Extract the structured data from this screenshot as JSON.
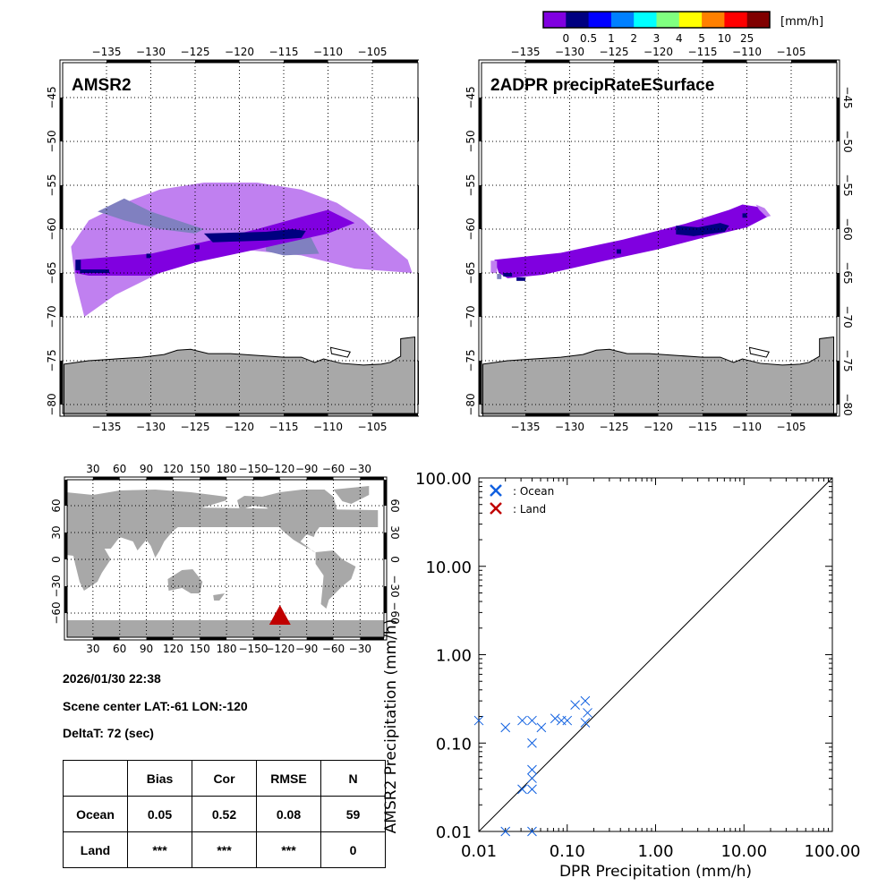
{
  "colorbar": {
    "unit_label": "[mm/h]",
    "colors": [
      "#8000e0",
      "#000080",
      "#0000ff",
      "#0080ff",
      "#00ffff",
      "#80ff80",
      "#ffff00",
      "#ff8000",
      "#ff0000",
      "#800000"
    ],
    "tick_labels": [
      "0",
      "0.5",
      "1",
      "2",
      "3",
      "4",
      "5",
      "10",
      "25"
    ]
  },
  "maps": {
    "lon_ticks": [
      "−135",
      "−130",
      "−125",
      "−120",
      "−115",
      "−110",
      "−105"
    ],
    "lat_ticks": [
      "−45",
      "−50",
      "−55",
      "−60",
      "−65",
      "−70",
      "−75",
      "−80"
    ],
    "amsr2": {
      "title": "AMSR2"
    },
    "dpr": {
      "title": "2ADPR precipRateESurface"
    },
    "land_color": "#a8a8a8",
    "swath_colors": {
      "outer": "#c080f0",
      "light": "#8080c0",
      "rain_lt_05": "#8000e0",
      "rain_05_1": "#000080"
    }
  },
  "world_map": {
    "lon_ticks": [
      "30",
      "60",
      "90",
      "120",
      "150",
      "180",
      "−150",
      "−120",
      "−90",
      "−60",
      "−30"
    ],
    "lat_ticks": [
      "60",
      "30",
      "0",
      "−30",
      "−60"
    ],
    "marker": {
      "lat": -61,
      "lon": -120,
      "color": "#c00000"
    }
  },
  "info": {
    "datetime": "2026/01/30 22:38",
    "scene_center": "Scene center LAT:-61   LON:-120",
    "deltat": "DeltaT:   72 (sec)"
  },
  "stats_table": {
    "headers": [
      "",
      "Bias",
      "Cor",
      "RMSE",
      "N"
    ],
    "rows": [
      [
        "Ocean",
        "0.05",
        "0.52",
        "0.08",
        "59"
      ],
      [
        "Land",
        "***",
        "***",
        "***",
        "0"
      ]
    ]
  },
  "chart_data": {
    "type": "scatter",
    "title": "",
    "xlabel": "DPR Precipitation (mm/h)",
    "ylabel": "AMSR2 Precipitation (mm/h)",
    "xscale": "log",
    "yscale": "log",
    "xlim": [
      0.01,
      100
    ],
    "ylim": [
      0.01,
      100
    ],
    "x_tick_labels": [
      "0.01",
      "0.10",
      "1.00",
      "10.00",
      "100.00"
    ],
    "y_tick_labels": [
      "0.01",
      "0.10",
      "1.00",
      "10.00",
      "100.00"
    ],
    "legend_position": "top-left",
    "reference_line": "1:1",
    "series": [
      {
        "name": ": Ocean",
        "color": "#1060e0",
        "points": [
          [
            0.01,
            0.18
          ],
          [
            0.02,
            0.15
          ],
          [
            0.031,
            0.18
          ],
          [
            0.04,
            0.18
          ],
          [
            0.051,
            0.15
          ],
          [
            0.073,
            0.19
          ],
          [
            0.086,
            0.18
          ],
          [
            0.1,
            0.18
          ],
          [
            0.123,
            0.27
          ],
          [
            0.16,
            0.3
          ],
          [
            0.17,
            0.22
          ],
          [
            0.16,
            0.17
          ],
          [
            0.04,
            0.1
          ],
          [
            0.04,
            0.05
          ],
          [
            0.04,
            0.04
          ],
          [
            0.031,
            0.03
          ],
          [
            0.04,
            0.03
          ],
          [
            0.02,
            0.01
          ],
          [
            0.04,
            0.01
          ]
        ]
      },
      {
        "name": ": Land",
        "color": "#c00000",
        "points": []
      }
    ]
  }
}
